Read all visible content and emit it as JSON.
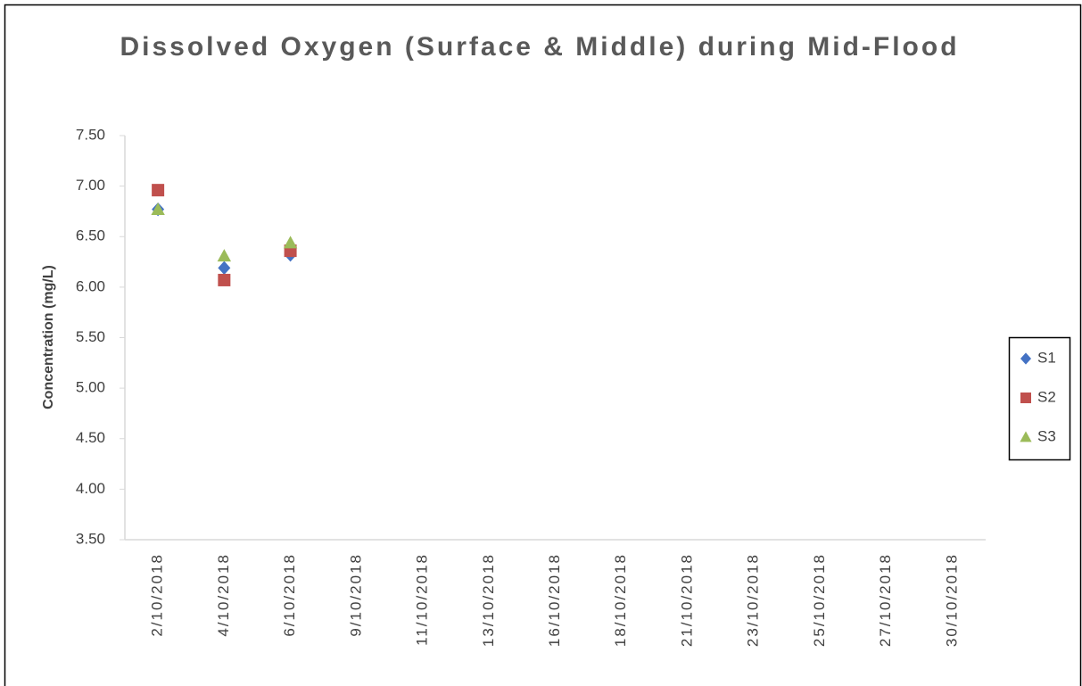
{
  "chart_data": {
    "type": "scatter",
    "title": "Dissolved Oxygen (Surface & Middle) during Mid-Flood",
    "ylabel": "Concentration (mg/L)",
    "categories": [
      "2/10/2018",
      "4/10/2018",
      "6/10/2018",
      "9/10/2018",
      "11/10/2018",
      "13/10/2018",
      "16/10/2018",
      "18/10/2018",
      "21/10/2018",
      "23/10/2018",
      "25/10/2018",
      "27/10/2018",
      "30/10/2018"
    ],
    "series": [
      {
        "name": "S1",
        "color": "#4472c4",
        "marker": "diamond",
        "values": [
          6.77,
          6.19,
          6.32,
          null,
          null,
          null,
          null,
          null,
          null,
          null,
          null,
          null,
          null
        ]
      },
      {
        "name": "S2",
        "color": "#c0504d",
        "marker": "square",
        "values": [
          6.96,
          6.07,
          6.36,
          null,
          null,
          null,
          null,
          null,
          null,
          null,
          null,
          null,
          null
        ]
      },
      {
        "name": "S3",
        "color": "#9bbb59",
        "marker": "triangle",
        "values": [
          6.77,
          6.31,
          6.44,
          null,
          null,
          null,
          null,
          null,
          null,
          null,
          null,
          null,
          null
        ]
      }
    ],
    "ylim": [
      3.5,
      7.5
    ],
    "yticks": [
      {
        "value": 3.5,
        "label": "3.50"
      },
      {
        "value": 4,
        "label": "4.00"
      },
      {
        "value": 4.5,
        "label": "4.50"
      },
      {
        "value": 5,
        "label": "5.00"
      },
      {
        "value": 5.5,
        "label": "5.50"
      },
      {
        "value": 6,
        "label": "6.00"
      },
      {
        "value": 6.5,
        "label": "6.50"
      },
      {
        "value": 7,
        "label": "7.00"
      },
      {
        "value": 7.5,
        "label": "7.50"
      }
    ],
    "grid": false,
    "legend": "right"
  }
}
